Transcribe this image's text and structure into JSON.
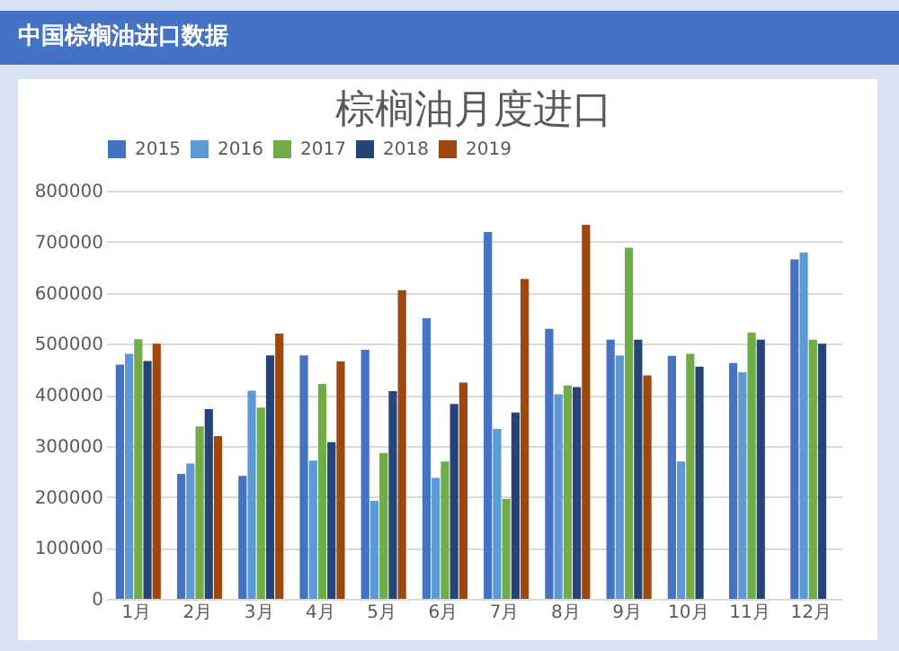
{
  "chart_data": {
    "type": "bar",
    "title": "棕榈油月度进口",
    "annotations": [
      "中国棕榈油进口数据"
    ],
    "categories": [
      "1月",
      "2月",
      "3月",
      "4月",
      "5月",
      "6月",
      "7月",
      "8月",
      "9月",
      "10月",
      "11月",
      "12月"
    ],
    "series": [
      {
        "name": "2015",
        "color": "#4472c4",
        "values": [
          459000,
          245000,
          241000,
          477000,
          488000,
          550000,
          719000,
          529000,
          508000,
          476000,
          462000,
          665000
        ]
      },
      {
        "name": "2016",
        "color": "#5b9bd5",
        "values": [
          480000,
          265000,
          408000,
          271000,
          192000,
          237000,
          333000,
          401000,
          477000,
          269000,
          444000,
          679000
        ]
      },
      {
        "name": "2017",
        "color": "#70ad47",
        "values": [
          509000,
          338000,
          375000,
          421000,
          286000,
          269000,
          196000,
          418000,
          688000,
          480000,
          522000,
          508000
        ]
      },
      {
        "name": "2018",
        "color": "#264478",
        "values": [
          466000,
          372000,
          477000,
          307000,
          407000,
          382000,
          365000,
          415000,
          508000,
          455000,
          508000,
          500000
        ]
      },
      {
        "name": "2019",
        "color": "#9e480e",
        "values": [
          500000,
          319000,
          520000,
          465000,
          605000,
          424000,
          627000,
          733000,
          438000,
          null,
          null,
          null
        ]
      }
    ],
    "ylim": [
      0,
      800000
    ],
    "yticks": [
      0,
      100000,
      200000,
      300000,
      400000,
      500000,
      600000,
      700000,
      800000
    ],
    "grid": "y",
    "legend": "top"
  }
}
